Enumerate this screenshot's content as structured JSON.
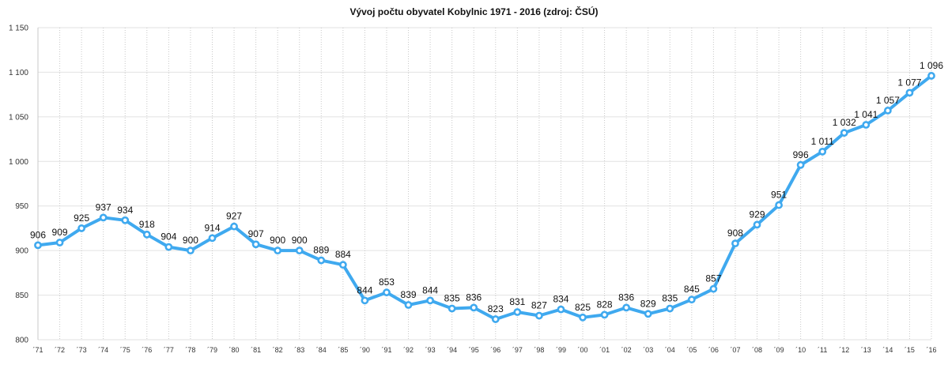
{
  "chart_data": {
    "type": "line",
    "title": "Vývoj počtu obyvatel Kobylnic 1971 - 2016 (zdroj: ČSÚ)",
    "xlabel": "",
    "ylabel": "",
    "ylim": [
      800,
      1150
    ],
    "yticks": [
      800,
      850,
      900,
      950,
      1000,
      1050,
      1100,
      1150
    ],
    "ytick_labels": [
      "800",
      "850",
      "900",
      "950",
      "1 000",
      "1 050",
      "1 100",
      "1 150"
    ],
    "grid": true,
    "line_color": "#3fa9ef",
    "marker_fill": "#ffffff",
    "categories": [
      "´71",
      "´72",
      "´73",
      "´74",
      "´75",
      "´76",
      "´77",
      "´78",
      "´79",
      "´80",
      "´81",
      "´82",
      "´83",
      "´84",
      "´85",
      "´90",
      "´91",
      "´92",
      "´93",
      "´94",
      "´95",
      "´96",
      "´97",
      "´98",
      "´99",
      "´00",
      "´01",
      "´02",
      "´03",
      "´04",
      "´05",
      "´06",
      "´07",
      "´08",
      "´09",
      "´10",
      "´11",
      "´12",
      "´13",
      "´14",
      "´15",
      "´16"
    ],
    "values": [
      906,
      909,
      925,
      937,
      934,
      918,
      904,
      900,
      914,
      927,
      907,
      900,
      900,
      889,
      884,
      844,
      853,
      839,
      844,
      835,
      836,
      823,
      831,
      827,
      834,
      825,
      828,
      836,
      829,
      835,
      845,
      857,
      908,
      929,
      951,
      996,
      1011,
      1032,
      1041,
      1057,
      1077,
      1096
    ],
    "value_labels": [
      "906",
      "909",
      "925",
      "937",
      "934",
      "918",
      "904",
      "900",
      "914",
      "927",
      "907",
      "900",
      "900",
      "889",
      "884",
      "844",
      "853",
      "839",
      "844",
      "835",
      "836",
      "823",
      "831",
      "827",
      "834",
      "825",
      "828",
      "836",
      "829",
      "835",
      "845",
      "857",
      "908",
      "929",
      "951",
      "996",
      "1 011",
      "1 032",
      "1 041",
      "1 057",
      "1 077",
      "1 096"
    ]
  }
}
